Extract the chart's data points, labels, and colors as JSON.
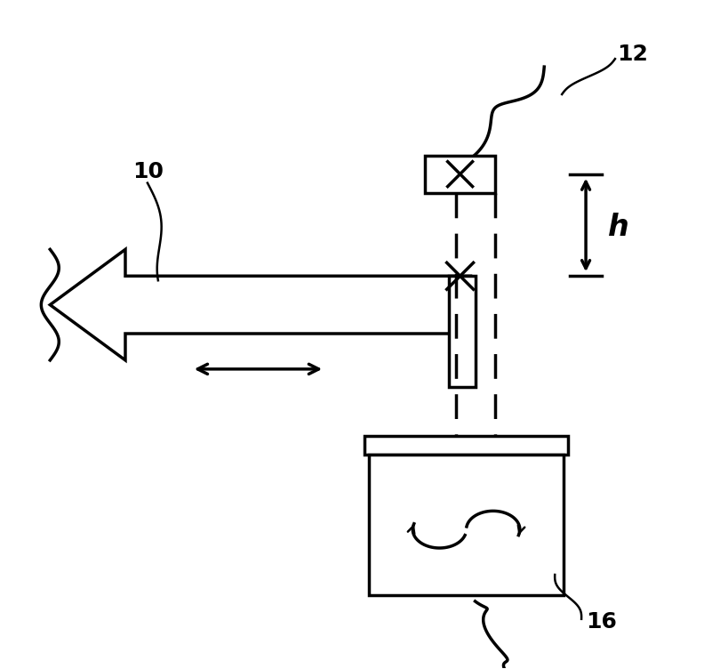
{
  "bg_color": "#ffffff",
  "line_color": "#000000",
  "fig_width": 8.19,
  "fig_height": 7.52,
  "label_fontsize": 18
}
